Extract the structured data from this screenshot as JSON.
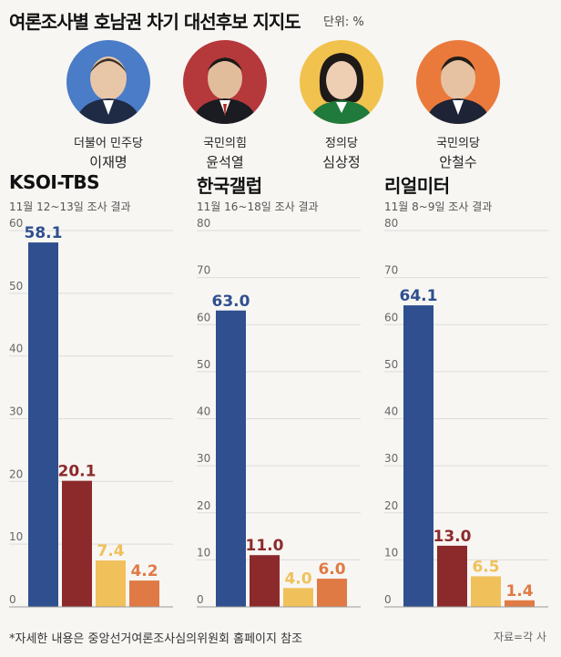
{
  "header": {
    "title": "여론조사별 호남권 차기 대선후보 지지도",
    "unit": "단위: %"
  },
  "candidates": [
    {
      "party": "더불어 민주당",
      "name": "이재명",
      "bg": "#4a7cc7"
    },
    {
      "party": "국민의힘",
      "name": "윤석열",
      "bg": "#b5383b"
    },
    {
      "party": "정의당",
      "name": "심상정",
      "bg": "#f2c24e"
    },
    {
      "party": "국민의당",
      "name": "안철수",
      "bg": "#ea7a3c"
    }
  ],
  "colors": {
    "blue": "#2f4f8f",
    "red": "#8c2a2b",
    "yellow": "#f0c05a",
    "orange": "#e07a45"
  },
  "chart_data": [
    {
      "type": "bar",
      "title": "KSOI-TBS",
      "subtitle": "11월 12~13일 조사 결과",
      "categories": [
        "이재명",
        "윤석열",
        "심상정",
        "안철수"
      ],
      "values": [
        58.1,
        20.1,
        7.4,
        4.2
      ],
      "value_labels": [
        "58.1",
        "20.1",
        "7.4",
        "4.2"
      ],
      "ylim": [
        0,
        60
      ],
      "ticks": [
        "0",
        "10",
        "20",
        "30",
        "40",
        "50",
        "60"
      ]
    },
    {
      "type": "bar",
      "title": "한국갤럽",
      "subtitle": "11월 16~18일 조사 결과",
      "categories": [
        "이재명",
        "윤석열",
        "심상정",
        "안철수"
      ],
      "values": [
        63.0,
        11.0,
        4.0,
        6.0
      ],
      "value_labels": [
        "63.0",
        "11.0",
        "4.0",
        "6.0"
      ],
      "ylim": [
        0,
        80
      ],
      "ticks": [
        "0",
        "10",
        "20",
        "30",
        "40",
        "50",
        "60",
        "70",
        "80"
      ]
    },
    {
      "type": "bar",
      "title": "리얼미터",
      "subtitle": "11월 8~9일 조사 결과",
      "categories": [
        "이재명",
        "윤석열",
        "심상정",
        "안철수"
      ],
      "values": [
        64.1,
        13.0,
        6.5,
        1.4
      ],
      "value_labels": [
        "64.1",
        "13.0",
        "6.5",
        "1.4"
      ],
      "ylim": [
        0,
        80
      ],
      "ticks": [
        "0",
        "10",
        "20",
        "30",
        "40",
        "50",
        "60",
        "70",
        "80"
      ]
    }
  ],
  "footer": {
    "note": "*자세한 내용은 중앙선거여론조사심의위원회 홈페이지 참조",
    "source": "자료=각 사"
  }
}
